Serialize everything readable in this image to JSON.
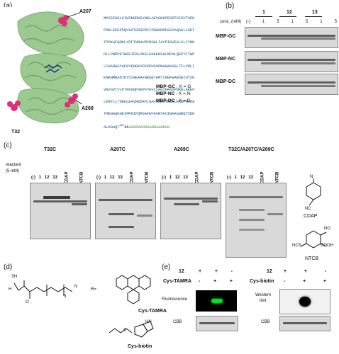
{
  "panels": {
    "a": "(a)",
    "b": "(b)",
    "c": "(c)",
    "d": "(d)",
    "e": "(e)"
  },
  "panel_a": {
    "labels": {
      "a207": "A207",
      "t32": "T32",
      "a269": "A269"
    },
    "sequence": [
      "MKIEEGKLVIWINGDKGYNGLAEVGKKFEKDTGIKVTVEH",
      "PDKLEEKFPQVAATGDGPDIIFWAHDRFGGYAQSGLLAEI",
      "TPDKAFQDKLYPFTWDAVRYNGKLIAYPIAVEALSLIYNK",
      "DLLPNPPKTWEEIPALDKELKAKGKSALMFNLQEPYFTWP",
      "LIAADGGYAFKYENGKYDIKDVGVDNAGAKAGLTFLVDLI",
      "KNKHMNADTDYSIAEAAFNKGETAMTINGPWAWSNIDTSK",
      "VNYGVTVLPTFKGQPSKPFVGVLSAGINAASPNKELAKEF",
      "LENYLLTDEGLEAVNKDKPLGAVALKSYEEELAKDPRIAA",
      "TMENAQKGEIMPNIPQMSAFWYAVRTAVINAASGRQTVDE",
      "ALKDAQT",
      "XC",
      "AADDAADDAADDAADDGG"
    ],
    "seq_superscript": "367",
    "variants": [
      {
        "name": "MBP-GC",
        "sep": ":",
        "x": "X = G"
      },
      {
        "name": "MBP-NC",
        "sep": ":",
        "x": "X = N"
      },
      {
        "name": "MBP-DC",
        "sep": ":",
        "x": "X = D"
      }
    ]
  },
  "panel_b": {
    "conc_label": "conc. (mM)",
    "groups": [
      "1",
      "12",
      "13"
    ],
    "lanes": [
      "(-)",
      "1",
      "5",
      "1",
      "5",
      "1",
      "5"
    ],
    "rows": [
      "MBP-GC",
      "MBP-NC",
      "MBP-DC"
    ]
  },
  "panel_c": {
    "reactant_label": "reactant",
    "reactant_conc": "(5 mM)",
    "gels": [
      "T32C",
      "A207C",
      "A269C",
      "T32C/A207C/A269C"
    ],
    "lanes": [
      "(-)",
      "1",
      "12",
      "13",
      "CDAP",
      "NTCB"
    ],
    "reagents": {
      "cdap": "CDAP",
      "ntcb": "NTCB",
      "nc": "NC",
      "ncs": "NCS",
      "no2": "NO",
      "cooh": "COOH",
      "nme2": "N"
    }
  },
  "panel_d": {
    "labels": {
      "r": "R=",
      "cys_tamra": "Cys-TAMRA",
      "cys_biotin": "Cys-biotin",
      "sh": "SH",
      "h2n": "H",
      "o": "O",
      "n": "N",
      "n3": "3",
      "hn": "HN",
      "nh": "NH",
      "s": "S",
      "h": "H"
    }
  },
  "panel_e": {
    "left": {
      "row12": "12",
      "rowlabel": "Cys-TAMRA",
      "signs12": [
        "+",
        "+",
        "-"
      ],
      "signsR": [
        "-",
        "+",
        "+"
      ],
      "blot": "Fluorescence",
      "cbb": "CBB"
    },
    "right": {
      "row12": "12",
      "rowlabel": "Cys-biotin",
      "signs12": [
        "+",
        "+",
        "-"
      ],
      "signsR": [
        "-",
        "+",
        "+"
      ],
      "blot_l1": "Western",
      "blot_l2": "blot",
      "cbb": "CBB"
    }
  },
  "colors": {
    "protein": "#9cc990",
    "highlight": "#e02f7a",
    "sequence": "#1a4f84",
    "tag": "#2d9a35",
    "fluor": "#00dd22"
  }
}
